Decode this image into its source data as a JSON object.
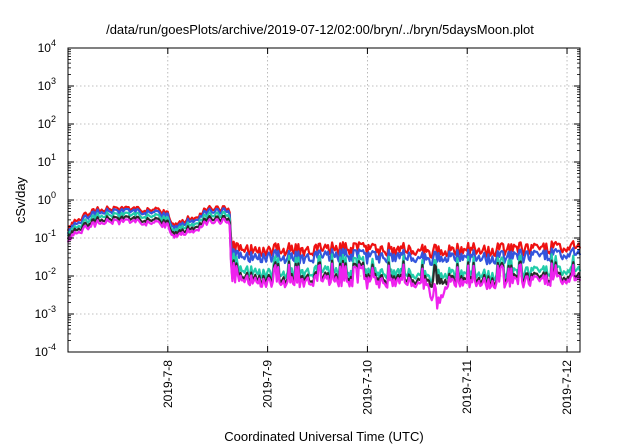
{
  "chart_data": {
    "type": "line",
    "title": "/data/run/goesPlots/archive/2019-07-12/02:00/bryn/../bryn/5daysMoon.plot",
    "xlabel": "Coordinated Universal Time (UTC)",
    "ylabel": "cSv/day",
    "yscale": "log",
    "ylim": [
      0.0001,
      10000
    ],
    "xlim_days": [
      7.0,
      12.13
    ],
    "grid": true,
    "x_ticks": [
      {
        "label": "2019-7-8",
        "day": 8
      },
      {
        "label": "2019-7-9",
        "day": 9
      },
      {
        "label": "2019-7-10",
        "day": 10
      },
      {
        "label": "2019-7-11",
        "day": 11
      },
      {
        "label": "2019-7-12",
        "day": 12
      }
    ],
    "y_ticks": [
      {
        "base": "10",
        "exp": "-4",
        "value": 0.0001
      },
      {
        "base": "10",
        "exp": "-3",
        "value": 0.001
      },
      {
        "base": "10",
        "exp": "-2",
        "value": 0.01
      },
      {
        "base": "10",
        "exp": "-1",
        "value": 0.1
      },
      {
        "base": "10",
        "exp": "0",
        "value": 1
      },
      {
        "base": "10",
        "exp": "1",
        "value": 10
      },
      {
        "base": "10",
        "exp": "2",
        "value": 100
      },
      {
        "base": "10",
        "exp": "3",
        "value": 1000
      },
      {
        "base": "10",
        "exp": "4",
        "value": 10000
      }
    ],
    "series": [
      {
        "color": "#ee1111",
        "points": [
          [
            7.0,
            0.18
          ],
          [
            7.1,
            0.3
          ],
          [
            7.2,
            0.45
          ],
          [
            7.3,
            0.55
          ],
          [
            7.4,
            0.6
          ],
          [
            7.5,
            0.58
          ],
          [
            7.6,
            0.62
          ],
          [
            7.7,
            0.6
          ],
          [
            7.8,
            0.55
          ],
          [
            7.95,
            0.5
          ],
          [
            8.0,
            0.45
          ],
          [
            8.05,
            0.2
          ],
          [
            8.1,
            0.22
          ],
          [
            8.2,
            0.35
          ],
          [
            8.3,
            0.3
          ],
          [
            8.35,
            0.55
          ],
          [
            8.45,
            0.65
          ],
          [
            8.55,
            0.6
          ],
          [
            8.62,
            0.55
          ],
          [
            8.64,
            0.055
          ],
          [
            8.8,
            0.05
          ],
          [
            9.0,
            0.05
          ],
          [
            9.2,
            0.048
          ],
          [
            9.5,
            0.05
          ],
          [
            9.8,
            0.052
          ],
          [
            10.0,
            0.05
          ],
          [
            10.3,
            0.05
          ],
          [
            10.6,
            0.045
          ],
          [
            10.8,
            0.05
          ],
          [
            11.0,
            0.05
          ],
          [
            11.3,
            0.048
          ],
          [
            11.6,
            0.052
          ],
          [
            11.9,
            0.055
          ],
          [
            12.13,
            0.06
          ]
        ]
      },
      {
        "color": "#3355dd",
        "points": [
          [
            7.0,
            0.15
          ],
          [
            7.1,
            0.25
          ],
          [
            7.2,
            0.38
          ],
          [
            7.3,
            0.48
          ],
          [
            7.4,
            0.52
          ],
          [
            7.5,
            0.5
          ],
          [
            7.6,
            0.55
          ],
          [
            7.7,
            0.52
          ],
          [
            7.8,
            0.48
          ],
          [
            7.95,
            0.42
          ],
          [
            8.0,
            0.4
          ],
          [
            8.05,
            0.17
          ],
          [
            8.1,
            0.19
          ],
          [
            8.2,
            0.3
          ],
          [
            8.3,
            0.26
          ],
          [
            8.35,
            0.48
          ],
          [
            8.45,
            0.55
          ],
          [
            8.55,
            0.52
          ],
          [
            8.62,
            0.48
          ],
          [
            8.64,
            0.035
          ],
          [
            8.8,
            0.032
          ],
          [
            9.0,
            0.035
          ],
          [
            9.2,
            0.03
          ],
          [
            9.5,
            0.033
          ],
          [
            9.8,
            0.035
          ],
          [
            10.0,
            0.032
          ],
          [
            10.3,
            0.034
          ],
          [
            10.6,
            0.028
          ],
          [
            10.8,
            0.035
          ],
          [
            11.0,
            0.033
          ],
          [
            11.3,
            0.03
          ],
          [
            11.6,
            0.034
          ],
          [
            11.9,
            0.036
          ],
          [
            12.13,
            0.04
          ]
        ]
      },
      {
        "color": "#22ccaa",
        "points": [
          [
            7.0,
            0.13
          ],
          [
            7.1,
            0.2
          ],
          [
            7.2,
            0.3
          ],
          [
            7.3,
            0.38
          ],
          [
            7.4,
            0.42
          ],
          [
            7.5,
            0.4
          ],
          [
            7.6,
            0.44
          ],
          [
            7.7,
            0.42
          ],
          [
            7.8,
            0.38
          ],
          [
            7.95,
            0.34
          ],
          [
            8.0,
            0.32
          ],
          [
            8.05,
            0.14
          ],
          [
            8.1,
            0.16
          ],
          [
            8.2,
            0.24
          ],
          [
            8.3,
            0.21
          ],
          [
            8.35,
            0.38
          ],
          [
            8.45,
            0.44
          ],
          [
            8.55,
            0.42
          ],
          [
            8.62,
            0.38
          ],
          [
            8.64,
            0.015
          ],
          [
            8.8,
            0.014
          ],
          [
            9.0,
            0.013
          ],
          [
            9.2,
            0.012
          ],
          [
            9.5,
            0.014
          ],
          [
            9.8,
            0.013
          ],
          [
            10.0,
            0.012
          ],
          [
            10.3,
            0.013
          ],
          [
            10.6,
            0.01
          ],
          [
            10.8,
            0.013
          ],
          [
            11.0,
            0.012
          ],
          [
            11.3,
            0.011
          ],
          [
            11.6,
            0.013
          ],
          [
            11.9,
            0.014
          ],
          [
            12.13,
            0.015
          ]
        ]
      },
      {
        "color": "#2a2a2a",
        "points": [
          [
            7.0,
            0.11
          ],
          [
            7.1,
            0.17
          ],
          [
            7.2,
            0.24
          ],
          [
            7.3,
            0.3
          ],
          [
            7.4,
            0.33
          ],
          [
            7.5,
            0.32
          ],
          [
            7.6,
            0.35
          ],
          [
            7.7,
            0.33
          ],
          [
            7.8,
            0.3
          ],
          [
            7.95,
            0.27
          ],
          [
            8.0,
            0.26
          ],
          [
            8.05,
            0.12
          ],
          [
            8.1,
            0.13
          ],
          [
            8.2,
            0.19
          ],
          [
            8.3,
            0.17
          ],
          [
            8.35,
            0.3
          ],
          [
            8.45,
            0.35
          ],
          [
            8.55,
            0.33
          ],
          [
            8.62,
            0.3
          ],
          [
            8.64,
            0.01
          ],
          [
            8.8,
            0.0095
          ],
          [
            9.0,
            0.009
          ],
          [
            9.2,
            0.0085
          ],
          [
            9.5,
            0.0095
          ],
          [
            9.8,
            0.009
          ],
          [
            10.0,
            0.0085
          ],
          [
            10.3,
            0.009
          ],
          [
            10.6,
            0.0075
          ],
          [
            10.8,
            0.009
          ],
          [
            11.0,
            0.0085
          ],
          [
            11.3,
            0.008
          ],
          [
            11.6,
            0.009
          ],
          [
            11.9,
            0.0095
          ],
          [
            12.13,
            0.01
          ]
        ]
      },
      {
        "color": "#ee22ee",
        "points": [
          [
            7.0,
            0.09
          ],
          [
            7.1,
            0.14
          ],
          [
            7.2,
            0.2
          ],
          [
            7.3,
            0.25
          ],
          [
            7.4,
            0.28
          ],
          [
            7.5,
            0.27
          ],
          [
            7.6,
            0.29
          ],
          [
            7.7,
            0.28
          ],
          [
            7.8,
            0.25
          ],
          [
            7.95,
            0.23
          ],
          [
            8.0,
            0.22
          ],
          [
            8.05,
            0.1
          ],
          [
            8.1,
            0.11
          ],
          [
            8.2,
            0.16
          ],
          [
            8.3,
            0.14
          ],
          [
            8.35,
            0.25
          ],
          [
            8.45,
            0.29
          ],
          [
            8.55,
            0.28
          ],
          [
            8.62,
            0.25
          ],
          [
            8.64,
            0.0085
          ],
          [
            8.8,
            0.008
          ],
          [
            9.0,
            0.0075
          ],
          [
            9.2,
            0.007
          ],
          [
            9.5,
            0.008
          ],
          [
            9.8,
            0.0075
          ],
          [
            10.0,
            0.007
          ],
          [
            10.3,
            0.0075
          ],
          [
            10.6,
            0.006
          ],
          [
            10.7,
            0.0018
          ],
          [
            10.8,
            0.0075
          ],
          [
            11.0,
            0.007
          ],
          [
            11.3,
            0.0068
          ],
          [
            11.6,
            0.0075
          ],
          [
            11.9,
            0.008
          ],
          [
            12.13,
            0.0085
          ]
        ]
      }
    ]
  }
}
